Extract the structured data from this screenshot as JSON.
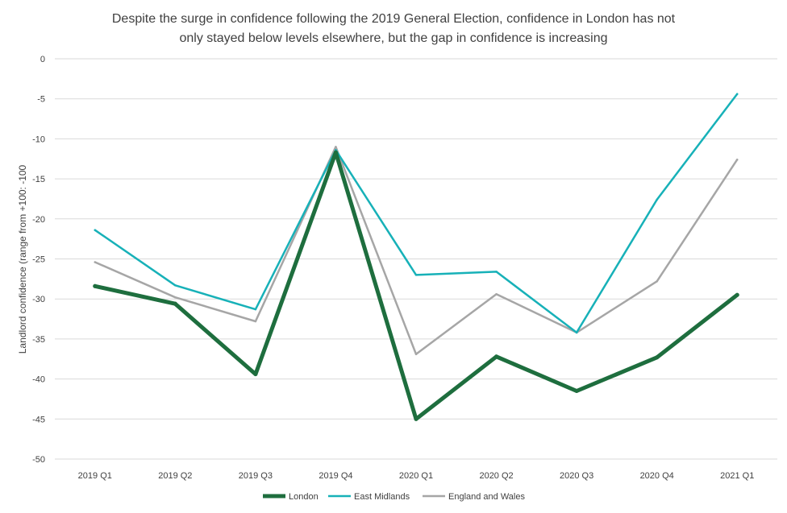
{
  "chart_data": {
    "type": "line",
    "title_lines": [
      "Despite the surge in confidence following the 2019 General Election, confidence in London has not",
      "only stayed below levels elsewhere, but the gap in confidence is increasing"
    ],
    "xlabel": "",
    "ylabel": "Landlord confidence (range from +100: -100",
    "categories": [
      "2019 Q1",
      "2019 Q2",
      "2019 Q3",
      "2019 Q4",
      "2020 Q1",
      "2020 Q2",
      "2020 Q3",
      "2020 Q4",
      "2021 Q1"
    ],
    "ylim": [
      -50,
      0
    ],
    "yticks": [
      0,
      -5,
      -10,
      -15,
      -20,
      -25,
      -30,
      -35,
      -40,
      -45,
      -50
    ],
    "grid": true,
    "legend_position": "bottom",
    "series": [
      {
        "name": "England and Wales",
        "color": "#a6a6a6",
        "width": "thin",
        "values": [
          -25.4,
          -29.8,
          -32.8,
          -11.0,
          -36.9,
          -29.4,
          -34.2,
          -27.8,
          -12.6
        ]
      },
      {
        "name": "East Midlands",
        "color": "#17b1b8",
        "width": "thin",
        "values": [
          -21.4,
          -28.3,
          -31.3,
          -11.4,
          -27.0,
          -26.6,
          -34.2,
          -17.6,
          -4.4
        ]
      },
      {
        "name": "London",
        "color": "#1e6e3e",
        "width": "thick",
        "values": [
          -28.4,
          -30.6,
          -39.4,
          -11.7,
          -45.0,
          -37.2,
          -41.5,
          -37.3,
          -29.5
        ]
      }
    ],
    "legend_order": [
      "London",
      "East Midlands",
      "England and Wales"
    ]
  }
}
